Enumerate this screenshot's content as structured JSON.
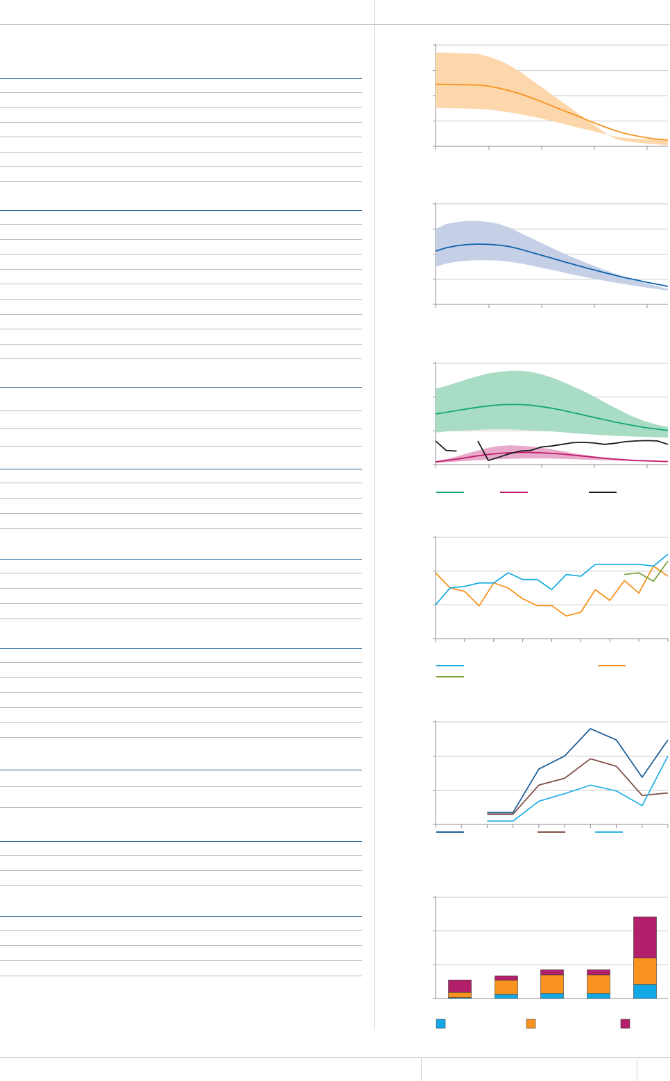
{
  "colors": {
    "orange": "#f7931e",
    "orange_band": "#fcd7ab",
    "blue": "#0e63ad",
    "blue_band": "#c5cfe6",
    "green": "#12a872",
    "green_band": "#a9dcc4",
    "magenta": "#c41a6c",
    "magenta_band": "#e7aacb",
    "black": "#1a1a1a",
    "cyan": "#1aaee2",
    "olive": "#7aa23b",
    "dark_blue": "#1d5f97",
    "brown": "#7f4f45",
    "light_blue": "#2bb2e6",
    "bar_blue": "#12a8e6",
    "bar_orange": "#f7931e",
    "bar_magenta": "#b21f6b",
    "table_blue_rule": "#1d5f97"
  },
  "table": {
    "sections": [
      {
        "rows": 7
      },
      {
        "rows": 10
      },
      {
        "rows": 3
      },
      {
        "rows": 4
      },
      {
        "rows": 4
      },
      {
        "rows": 6
      },
      {
        "rows": 2
      },
      {
        "rows": 3
      },
      {
        "rows": 4
      }
    ]
  },
  "chart_data": [
    {
      "type": "line",
      "x": [
        0,
        1,
        2,
        3,
        4,
        5,
        6,
        7,
        8,
        9,
        10,
        11,
        12,
        13,
        14,
        15,
        16,
        17,
        18,
        19,
        20,
        21,
        22
      ],
      "xlim": [
        0,
        22
      ],
      "ylim": [
        0,
        4
      ],
      "series": [
        {
          "role": "band_upper",
          "values": [
            3.7,
            3.7,
            3.68,
            3.67,
            3.65,
            3.55,
            3.4,
            3.2,
            2.95,
            2.65,
            2.35,
            2.05,
            1.75,
            1.45,
            1.15,
            0.85,
            0.55,
            0.3,
            0.2,
            0.15,
            0.1,
            0.08,
            0.05
          ]
        },
        {
          "role": "central",
          "values": [
            2.45,
            2.45,
            2.44,
            2.43,
            2.42,
            2.38,
            2.3,
            2.2,
            2.08,
            1.93,
            1.77,
            1.6,
            1.43,
            1.27,
            1.1,
            0.93,
            0.77,
            0.62,
            0.5,
            0.41,
            0.34,
            0.28,
            0.25
          ]
        },
        {
          "role": "band_lower",
          "values": [
            1.52,
            1.5,
            1.5,
            1.49,
            1.48,
            1.45,
            1.4,
            1.34,
            1.27,
            1.19,
            1.1,
            1.0,
            0.9,
            0.79,
            0.69,
            0.59,
            0.49,
            0.39,
            0.33,
            0.3,
            0.28,
            0.26,
            0.25
          ]
        }
      ]
    },
    {
      "type": "line",
      "x": [
        0,
        1,
        2,
        3,
        4,
        5,
        6,
        7,
        8,
        9,
        10,
        11,
        12,
        13,
        14,
        15,
        16,
        17,
        18,
        19,
        20,
        21,
        22
      ],
      "xlim": [
        0,
        22
      ],
      "ylim": [
        0,
        4
      ],
      "series": [
        {
          "role": "band_upper",
          "values": [
            3.0,
            3.2,
            3.28,
            3.32,
            3.32,
            3.28,
            3.2,
            3.05,
            2.85,
            2.65,
            2.45,
            2.25,
            2.05,
            1.87,
            1.7,
            1.53,
            1.37,
            1.22,
            1.08,
            0.95,
            0.83,
            0.72,
            0.62
          ]
        },
        {
          "role": "central",
          "values": [
            2.12,
            2.25,
            2.33,
            2.38,
            2.4,
            2.39,
            2.36,
            2.3,
            2.2,
            2.08,
            1.96,
            1.84,
            1.72,
            1.6,
            1.48,
            1.37,
            1.26,
            1.16,
            1.06,
            0.97,
            0.88,
            0.8,
            0.72
          ]
        },
        {
          "role": "band_lower",
          "values": [
            1.5,
            1.62,
            1.7,
            1.74,
            1.76,
            1.76,
            1.74,
            1.7,
            1.63,
            1.55,
            1.46,
            1.37,
            1.28,
            1.19,
            1.1,
            1.02,
            0.94,
            0.87,
            0.8,
            0.73,
            0.67,
            0.61,
            0.55
          ]
        }
      ]
    },
    {
      "type": "line",
      "x": [
        0,
        1,
        2,
        3,
        4,
        5,
        6,
        7,
        8,
        9,
        10,
        11,
        12,
        13,
        14,
        15,
        16,
        17,
        18,
        19,
        20,
        21,
        22
      ],
      "xlim": [
        0,
        22
      ],
      "ylim": [
        0,
        3
      ],
      "series": [
        {
          "role": "green_band_upper",
          "values": [
            2.25,
            2.33,
            2.43,
            2.53,
            2.62,
            2.7,
            2.75,
            2.78,
            2.78,
            2.75,
            2.68,
            2.58,
            2.46,
            2.32,
            2.18,
            2.02,
            1.85,
            1.68,
            1.52,
            1.38,
            1.27,
            1.18,
            1.12
          ]
        },
        {
          "role": "green",
          "values": [
            1.5,
            1.55,
            1.6,
            1.65,
            1.7,
            1.74,
            1.77,
            1.78,
            1.78,
            1.76,
            1.72,
            1.67,
            1.61,
            1.54,
            1.47,
            1.4,
            1.33,
            1.26,
            1.2,
            1.14,
            1.09,
            1.05,
            1.01
          ]
        },
        {
          "role": "green_band_lower",
          "values": [
            0.95,
            0.98,
            1.0,
            1.02,
            1.03,
            1.04,
            1.04,
            1.04,
            1.03,
            1.02,
            1.0,
            0.98,
            0.96,
            0.93,
            0.91,
            0.89,
            0.87,
            0.85,
            0.84,
            0.83,
            0.82,
            0.81,
            0.8
          ]
        },
        {
          "role": "magenta_band_upper",
          "values": [
            0.1,
            0.16,
            0.24,
            0.33,
            0.42,
            0.5,
            0.55,
            0.57,
            0.56,
            0.54,
            0.5,
            0.45,
            0.4,
            0.34,
            0.29,
            0.24,
            0.2,
            0.17,
            0.15,
            0.13,
            0.12,
            0.11,
            0.1
          ]
        },
        {
          "role": "magenta",
          "values": [
            0.08,
            0.12,
            0.16,
            0.21,
            0.26,
            0.3,
            0.33,
            0.35,
            0.36,
            0.36,
            0.35,
            0.33,
            0.31,
            0.28,
            0.25,
            0.22,
            0.19,
            0.16,
            0.14,
            0.12,
            0.11,
            0.1,
            0.09
          ]
        },
        {
          "role": "magenta_band_lower",
          "values": [
            0.05,
            0.07,
            0.09,
            0.11,
            0.13,
            0.15,
            0.16,
            0.17,
            0.18,
            0.18,
            0.18,
            0.18,
            0.17,
            0.16,
            0.15,
            0.14,
            0.13,
            0.12,
            0.11,
            0.1,
            0.09,
            0.08,
            0.07
          ]
        }
      ],
      "black_segments": [
        {
          "x": [
            0,
            1,
            2
          ],
          "values": [
            0.7,
            0.42,
            0.4
          ]
        },
        {
          "x": [
            4,
            5,
            6,
            7,
            8,
            9,
            10,
            11,
            12,
            13,
            14,
            15,
            16,
            17,
            18,
            19,
            20,
            21,
            22
          ],
          "values": [
            0.7,
            0.12,
            0.22,
            0.32,
            0.4,
            0.42,
            0.52,
            0.55,
            0.6,
            0.65,
            0.66,
            0.64,
            0.6,
            0.63,
            0.68,
            0.7,
            0.71,
            0.7,
            0.6
          ]
        }
      ]
    },
    {
      "type": "line",
      "x": [
        0,
        1,
        2,
        3,
        4,
        5,
        6,
        7,
        8,
        9,
        10,
        11,
        12,
        13,
        14,
        15,
        16
      ],
      "xlim": [
        0,
        16
      ],
      "ylim": [
        0,
        3
      ],
      "series": [
        {
          "role": "cyan",
          "values": [
            1.0,
            1.5,
            1.55,
            1.65,
            1.65,
            1.95,
            1.75,
            1.75,
            1.45,
            1.9,
            1.85,
            2.2,
            2.2,
            2.2,
            2.2,
            2.15,
            2.5
          ]
        },
        {
          "role": "orange",
          "values": [
            1.95,
            1.5,
            1.4,
            0.97,
            1.65,
            1.5,
            1.18,
            0.98,
            0.98,
            0.67,
            0.78,
            1.45,
            1.13,
            1.72,
            1.35,
            2.15,
            1.85
          ]
        },
        {
          "role": "olive",
          "x": [
            13,
            14,
            15,
            16
          ],
          "values": [
            1.9,
            1.95,
            1.7,
            2.3
          ]
        }
      ]
    },
    {
      "type": "line",
      "x": [
        0,
        1,
        2,
        3,
        4,
        5,
        6,
        7,
        8,
        9
      ],
      "xlim": [
        0,
        9
      ],
      "ylim": [
        0,
        3
      ],
      "series": [
        {
          "role": "dark_blue",
          "x": [
            2,
            3,
            4,
            5,
            6,
            7,
            8,
            9
          ],
          "values": [
            0.35,
            0.35,
            1.62,
            2.0,
            2.8,
            2.47,
            1.38,
            2.47
          ]
        },
        {
          "role": "brown",
          "x": [
            2,
            3,
            4,
            5,
            6,
            7,
            8,
            9
          ],
          "values": [
            0.3,
            0.3,
            1.15,
            1.35,
            1.92,
            1.7,
            0.85,
            0.92
          ]
        },
        {
          "role": "light_blue",
          "x": [
            2,
            3,
            4,
            5,
            6,
            7,
            8,
            9
          ],
          "values": [
            0.1,
            0.1,
            0.68,
            0.9,
            1.15,
            0.98,
            0.55,
            2.0
          ]
        }
      ]
    },
    {
      "type": "bar",
      "stacked": true,
      "ylim": [
        0,
        3
      ],
      "categories": [
        "",
        "",
        "",
        "",
        ""
      ],
      "series": [
        {
          "role": "bar_blue",
          "values": [
            0.03,
            0.12,
            0.15,
            0.15,
            0.42
          ]
        },
        {
          "role": "bar_orange",
          "values": [
            0.15,
            0.42,
            0.55,
            0.55,
            0.78
          ]
        },
        {
          "role": "bar_magenta",
          "values": [
            0.37,
            0.13,
            0.15,
            0.15,
            1.22
          ]
        }
      ]
    }
  ]
}
